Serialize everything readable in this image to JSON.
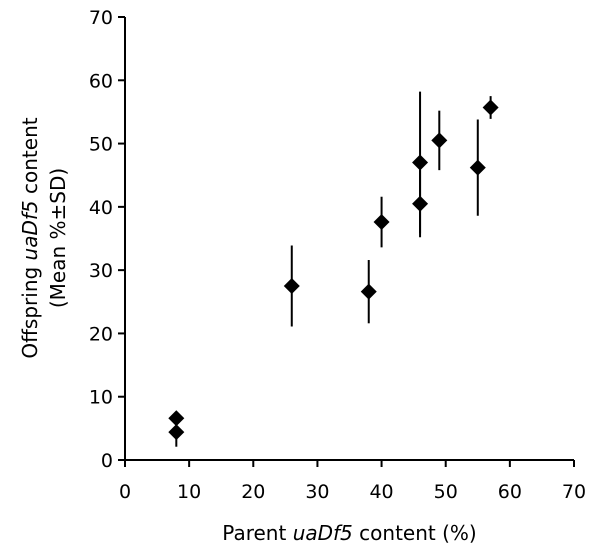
{
  "chart_data": {
    "type": "scatter",
    "xlabel": {
      "prefix": "Parent ",
      "italic": "uaDf5",
      "suffix": " content (%)"
    },
    "ylabel": {
      "line1": {
        "prefix": "Offspring ",
        "italic": "uaDf5",
        "suffix": " content"
      },
      "line2": "(Mean %±SD)"
    },
    "xlim": [
      0,
      70
    ],
    "ylim": [
      0,
      70
    ],
    "xticks": [
      0,
      10,
      20,
      30,
      40,
      50,
      60,
      70
    ],
    "yticks": [
      0,
      10,
      20,
      30,
      40,
      50,
      60,
      70
    ],
    "grid": false,
    "legend": "none",
    "marker": "diamond",
    "marker_color": "#000000",
    "points": [
      {
        "x": 8,
        "y": 6.6,
        "sd": 0
      },
      {
        "x": 8,
        "y": 4.4,
        "sd": 2.3
      },
      {
        "x": 26,
        "y": 27.5,
        "sd": 6.4
      },
      {
        "x": 38,
        "y": 26.6,
        "sd": 5.0
      },
      {
        "x": 40,
        "y": 37.6,
        "sd": 4.0
      },
      {
        "x": 46,
        "y": 40.5,
        "sd": 5.3
      },
      {
        "x": 46,
        "y": 47.0,
        "sd": 11.2
      },
      {
        "x": 49,
        "y": 50.5,
        "sd": 4.7
      },
      {
        "x": 55,
        "y": 46.2,
        "sd": 7.6
      },
      {
        "x": 57,
        "y": 55.7,
        "sd": 1.8
      }
    ]
  }
}
